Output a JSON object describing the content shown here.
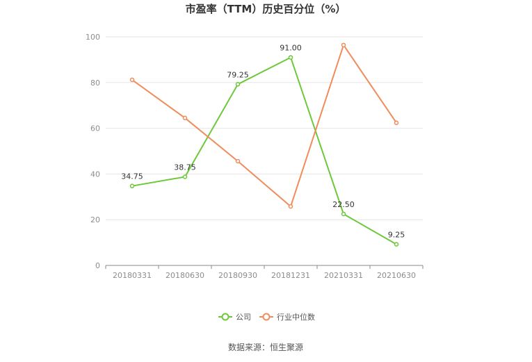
{
  "chart_data": {
    "type": "line",
    "title": "市盈率（TTM）历史百分位（%）",
    "categories": [
      "20180331",
      "20180630",
      "20180930",
      "20181231",
      "20210331",
      "20210630"
    ],
    "ylim": [
      0,
      100
    ],
    "yticks": [
      0,
      20,
      40,
      60,
      80,
      100
    ],
    "grid": true,
    "legend_position": "bottom",
    "series": [
      {
        "name": "公司",
        "color": "#6dc83a",
        "values": [
          34.75,
          38.75,
          79.25,
          91.0,
          22.5,
          9.25
        ],
        "labels": [
          "34.75",
          "38.75",
          "79.25",
          "91.00",
          "22.50",
          "9.25"
        ]
      },
      {
        "name": "行业中位数",
        "color": "#f08c5a",
        "values": [
          81.2,
          64.5,
          45.6,
          25.8,
          96.4,
          62.4
        ]
      }
    ],
    "source": "数据来源：恒生聚源"
  }
}
